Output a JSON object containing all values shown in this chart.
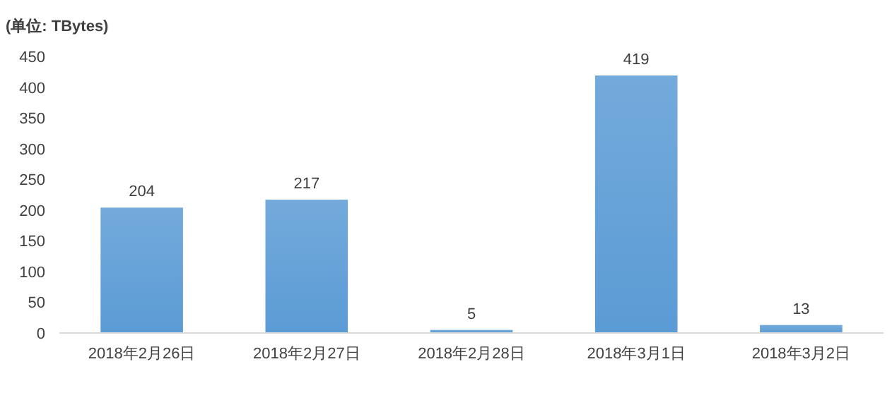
{
  "chart_data": {
    "type": "bar",
    "ylabel": "(单位: TBytes)",
    "categories": [
      "2018年2月26日",
      "2018年2月27日",
      "2018年2月28日",
      "2018年3月1日",
      "2018年3月2日"
    ],
    "values": [
      204,
      217,
      5,
      419,
      13
    ],
    "color": "#5b9bd5",
    "ylim": [
      0,
      450
    ],
    "yticks": [
      0,
      50,
      100,
      150,
      200,
      250,
      300,
      350,
      400,
      450
    ],
    "grid": false,
    "data_labels": true
  }
}
